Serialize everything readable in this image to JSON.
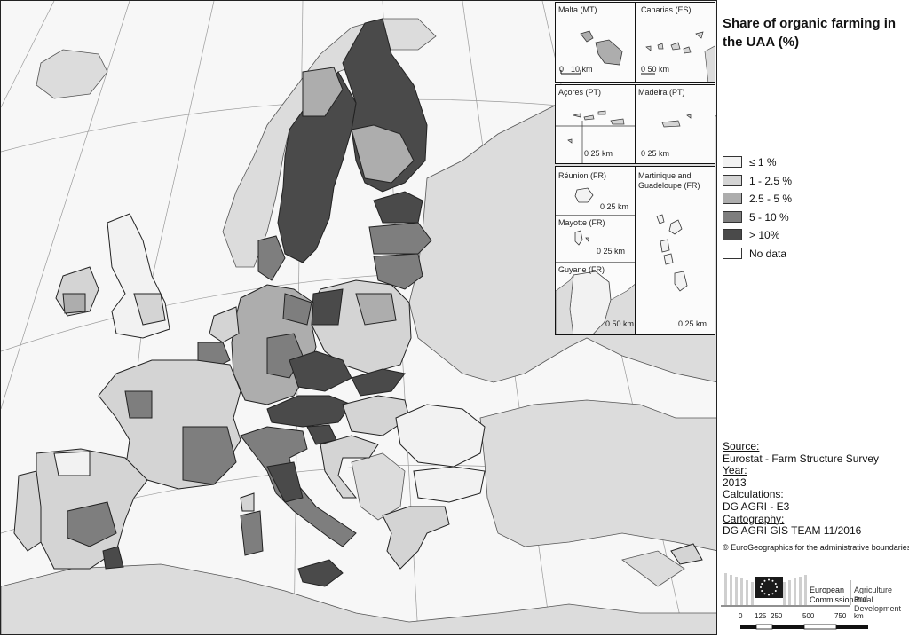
{
  "legend": {
    "title_line1": "Share of organic farming in",
    "title_line2": "the UAA (%)",
    "items": [
      {
        "label": "≤ 1 %",
        "color": "#f2f2f2"
      },
      {
        "label": "1 - 2.5 %",
        "color": "#d4d4d4"
      },
      {
        "label": "2.5 - 5 %",
        "color": "#adadad"
      },
      {
        "label": "5 - 10 %",
        "color": "#7e7e7e"
      },
      {
        "label": "> 10%",
        "color": "#4a4a4a"
      },
      {
        "label": "No data",
        "color": "#ffffff"
      }
    ]
  },
  "insets": {
    "malta": {
      "name": "Malta (MT)",
      "scale_zero": "0",
      "scale_label": "10 km"
    },
    "canarias": {
      "name": "Canarias (ES)",
      "scale_label": "0 50 km"
    },
    "acores": {
      "name": "Açores (PT)",
      "scale_label": "0 25 km"
    },
    "madeira": {
      "name": "Madeira (PT)",
      "scale_label": "0 25 km"
    },
    "reunion": {
      "name": "Réunion (FR)",
      "scale_label": "0 25 km"
    },
    "martinique": {
      "name_line1": "Martinique and",
      "name_line2": "Guadeloupe (FR)",
      "scale_label": "0 25 km"
    },
    "mayotte": {
      "name": "Mayotte (FR)",
      "scale_label": "0   25 km"
    },
    "guyane": {
      "name": "Guyane (FR)",
      "scale_label": "0 50 km"
    }
  },
  "info": {
    "source_header": "Source:",
    "source_value": "Eurostat - Farm Structure Survey",
    "year_header": "Year:",
    "year_value": "2013",
    "calc_header": "Calculations:",
    "calc_value": "DG AGRI - E3",
    "carto_header": "Cartography:",
    "carto_value": "DG AGRI GIS TEAM 11/2016",
    "copyright": "© EuroGeographics for the administrative boundaries"
  },
  "logo": {
    "line1": "European",
    "line2": "Commission",
    "dept_line1": "Agriculture and",
    "dept_line2": "Rural Development"
  },
  "scalebar": {
    "ticks": [
      "0",
      "125",
      "250",
      "500",
      "750"
    ],
    "unit": "km"
  }
}
